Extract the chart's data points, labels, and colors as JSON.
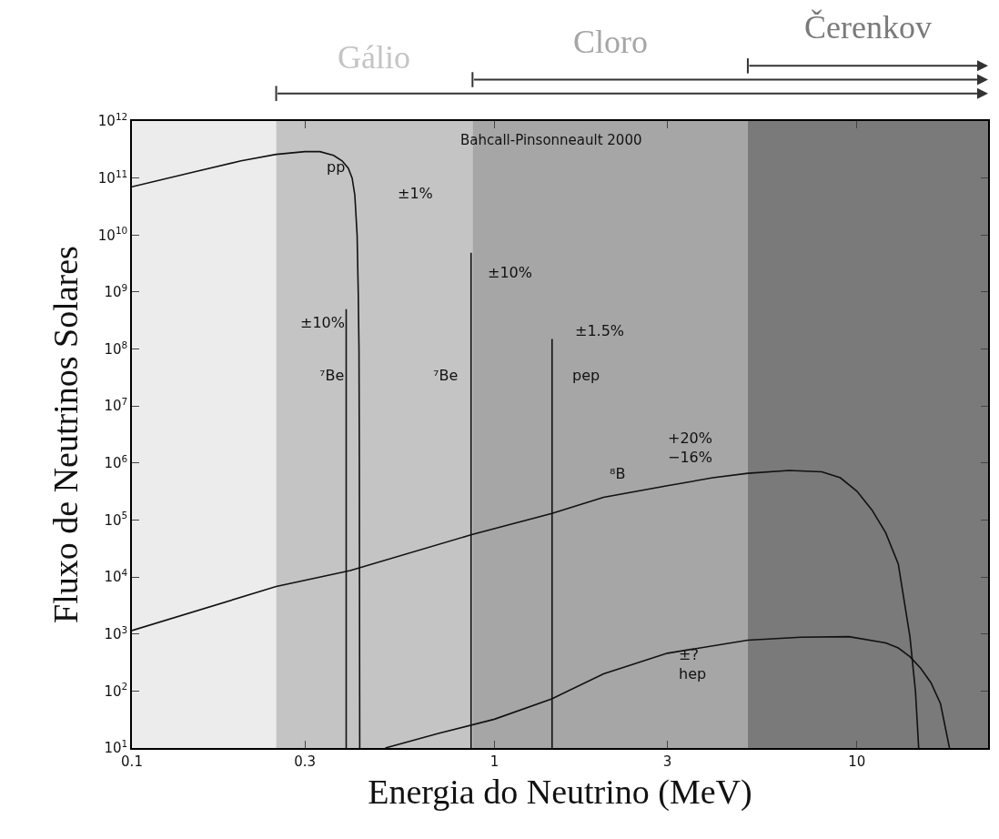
{
  "chart_data": {
    "type": "line",
    "xlabel": "Energia do Neutrino (MeV)",
    "ylabel": "Fluxo de Neutrinos Solares",
    "log": "xy",
    "grid": false,
    "marker": "none",
    "line_style": "solid",
    "xlim": [
      0.1,
      23
    ],
    "ylim": [
      10,
      1000000000000.0
    ],
    "xticks": [
      0.1,
      0.3,
      1,
      3,
      10
    ],
    "yticks": [
      {
        "value": 10,
        "label": "10$^{1}$"
      },
      {
        "value": 100,
        "label": "10$^{2}$"
      },
      {
        "value": 1000,
        "label": "10$^{3}$"
      },
      {
        "value": 10000,
        "label": "10$^{4}$"
      },
      {
        "value": 100000,
        "label": "10$^{5}$"
      },
      {
        "value": 1000000,
        "label": "10$^{6}$"
      },
      {
        "value": 10000000,
        "label": "10$^{7}$"
      },
      {
        "value": 100000000,
        "label": "10$^{8}$"
      },
      {
        "value": 1000000000,
        "label": "10$^{9}$"
      },
      {
        "value": 10000000000,
        "label": "10$^{10}$"
      },
      {
        "value": 100000000000,
        "label": "10$^{11}$"
      },
      {
        "value": 1000000000000,
        "label": "10$^{12}$"
      }
    ],
    "bands": [
      {
        "axis": "x",
        "from": 0.1,
        "to": 0.25,
        "color": "#ececec"
      },
      {
        "axis": "x",
        "from": 0.25,
        "to": 0.87,
        "color": "#c4c4c4",
        "label": "Gálio"
      },
      {
        "axis": "x",
        "from": 0.87,
        "to": 5,
        "color": "#a6a6a6",
        "label": "Cloro"
      },
      {
        "axis": "x",
        "from": 5,
        "to": 23,
        "color": "#7a7a7a",
        "label": "Čerenkov"
      }
    ],
    "series": [
      {
        "color": "#111111",
        "x": [
          0.1,
          0.15,
          0.2,
          0.25,
          0.3,
          0.33,
          0.36,
          0.38,
          0.395,
          0.405,
          0.412,
          0.418,
          0.421,
          0.423,
          0.424,
          0.425
        ],
        "values": [
          70000000000.0,
          130000000000.0,
          200000000000.0,
          260000000000.0,
          290000000000.0,
          290000000000.0,
          250000000000.0,
          200000000000.0,
          150000000000.0,
          100000000000.0,
          50000000000.0,
          10000000000.0,
          1000000000.0,
          100000000.0,
          1000000.0,
          10
        ]
      },
      {
        "color": "#111111",
        "x": [
          0.1,
          0.25,
          0.4,
          0.87,
          1.44,
          2,
          3,
          4,
          5,
          6.5,
          8,
          9,
          10,
          11,
          12,
          13,
          14,
          14.5,
          14.8
        ],
        "values": [
          1150,
          6800,
          13000,
          56000,
          130000,
          250000,
          400000,
          550000,
          660000,
          740000,
          700000,
          550000,
          320000,
          150000,
          60000,
          17000,
          900,
          100,
          10
        ]
      },
      {
        "color": "#111111",
        "x": [
          0.5,
          0.7,
          1,
          1.44,
          2,
          3,
          5,
          7,
          9.5,
          12,
          13,
          14,
          15,
          16,
          17,
          18
        ],
        "values": [
          10,
          18,
          32,
          73,
          200,
          460,
          780,
          880,
          900,
          700,
          570,
          400,
          250,
          140,
          60,
          10
        ]
      },
      {
        "color": "#111111",
        "x": [
          0.39,
          0.39
        ],
        "values": [
          10,
          500000000.0
        ]
      },
      {
        "color": "#111111",
        "x": [
          0.862,
          0.862
        ],
        "values": [
          10,
          4900000000.0
        ]
      },
      {
        "color": "#111111",
        "x": [
          1.442,
          1.442
        ],
        "values": [
          10,
          150000000.0
        ]
      }
    ],
    "annotations": [
      "Bahcall-Pinsonneault 2000",
      "pp",
      "±1%",
      "±10%",
      "⁷Be",
      "⁷Be",
      "±10%",
      "±1.5%",
      "pep",
      "+20%\n−16%",
      "⁸B",
      "±?\nhep"
    ]
  }
}
